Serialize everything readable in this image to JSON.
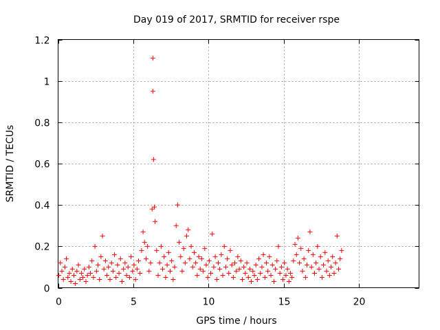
{
  "chart_data": {
    "type": "scatter",
    "title": "Day 019 of 2017, SRMTID for receiver rspe",
    "xlabel": "GPS time / hours",
    "ylabel": "SRMTID / TECUs",
    "xlim": [
      0,
      24
    ],
    "ylim": [
      0,
      1.2
    ],
    "xticks": [
      "0",
      "5",
      "10",
      "15",
      "20"
    ],
    "xtick_values": [
      0,
      5,
      10,
      15,
      20
    ],
    "yticks": [
      "0",
      "0.2",
      "0.4",
      "0.6",
      "0.8",
      "1",
      "1.2"
    ],
    "ytick_values": [
      0,
      0.2,
      0.4,
      0.6,
      0.8,
      1.0,
      1.2
    ],
    "grid": true,
    "marker": "+",
    "color": "#ff0000",
    "series": [
      {
        "points": [
          [
            0.05,
            0.06
          ],
          [
            0.15,
            0.12
          ],
          [
            0.25,
            0.08
          ],
          [
            0.35,
            0.04
          ],
          [
            0.45,
            0.1
          ],
          [
            0.55,
            0.14
          ],
          [
            0.65,
            0.05
          ],
          [
            0.75,
            0.07
          ],
          [
            0.85,
            0.03
          ],
          [
            0.95,
            0.09
          ],
          [
            1.05,
            0.06
          ],
          [
            1.15,
            0.02
          ],
          [
            1.25,
            0.08
          ],
          [
            1.35,
            0.11
          ],
          [
            1.45,
            0.04
          ],
          [
            1.55,
            0.07
          ],
          [
            1.65,
            0.05
          ],
          [
            1.75,
            0.09
          ],
          [
            1.85,
            0.03
          ],
          [
            1.95,
            0.06
          ],
          [
            2.05,
            0.1
          ],
          [
            2.15,
            0.07
          ],
          [
            2.25,
            0.13
          ],
          [
            2.35,
            0.05
          ],
          [
            2.45,
            0.2
          ],
          [
            2.55,
            0.08
          ],
          [
            2.65,
            0.11
          ],
          [
            2.75,
            0.04
          ],
          [
            2.85,
            0.15
          ],
          [
            2.95,
            0.25
          ],
          [
            3.05,
            0.09
          ],
          [
            3.15,
            0.13
          ],
          [
            3.25,
            0.06
          ],
          [
            3.35,
            0.1
          ],
          [
            3.45,
            0.04
          ],
          [
            3.55,
            0.12
          ],
          [
            3.65,
            0.08
          ],
          [
            3.75,
            0.16
          ],
          [
            3.85,
            0.05
          ],
          [
            3.95,
            0.11
          ],
          [
            4.05,
            0.07
          ],
          [
            4.15,
            0.14
          ],
          [
            4.25,
            0.03
          ],
          [
            4.35,
            0.09
          ],
          [
            4.45,
            0.12
          ],
          [
            4.55,
            0.06
          ],
          [
            4.65,
            0.1
          ],
          [
            4.75,
            0.05
          ],
          [
            4.85,
            0.15
          ],
          [
            4.95,
            0.08
          ],
          [
            5.05,
            0.11
          ],
          [
            5.15,
            0.04
          ],
          [
            5.25,
            0.09
          ],
          [
            5.35,
            0.13
          ],
          [
            5.45,
            0.07
          ],
          [
            5.55,
            0.18
          ],
          [
            5.65,
            0.27
          ],
          [
            5.75,
            0.22
          ],
          [
            5.85,
            0.14
          ],
          [
            5.95,
            0.2
          ],
          [
            6.05,
            0.08
          ],
          [
            6.15,
            0.12
          ],
          [
            6.25,
            0.38
          ],
          [
            6.3,
            1.11
          ],
          [
            6.3,
            0.95
          ],
          [
            6.35,
            0.62
          ],
          [
            6.4,
            0.39
          ],
          [
            6.45,
            0.32
          ],
          [
            6.55,
            0.18
          ],
          [
            6.65,
            0.06
          ],
          [
            6.75,
            0.12
          ],
          [
            6.85,
            0.2
          ],
          [
            6.95,
            0.09
          ],
          [
            7.05,
            0.15
          ],
          [
            7.15,
            0.05
          ],
          [
            7.25,
            0.11
          ],
          [
            7.35,
            0.17
          ],
          [
            7.45,
            0.08
          ],
          [
            7.55,
            0.13
          ],
          [
            7.65,
            0.04
          ],
          [
            7.75,
            0.1
          ],
          [
            7.85,
            0.3
          ],
          [
            7.95,
            0.4
          ],
          [
            8.05,
            0.22
          ],
          [
            8.15,
            0.15
          ],
          [
            8.25,
            0.08
          ],
          [
            8.35,
            0.19
          ],
          [
            8.45,
            0.12
          ],
          [
            8.55,
            0.25
          ],
          [
            8.65,
            0.28
          ],
          [
            8.75,
            0.14
          ],
          [
            8.85,
            0.2
          ],
          [
            8.95,
            0.1
          ],
          [
            9.05,
            0.17
          ],
          [
            9.15,
            0.12
          ],
          [
            9.25,
            0.06
          ],
          [
            9.35,
            0.15
          ],
          [
            9.45,
            0.09
          ],
          [
            9.55,
            0.14
          ],
          [
            9.65,
            0.08
          ],
          [
            9.75,
            0.19
          ],
          [
            9.85,
            0.11
          ],
          [
            9.95,
            0.05
          ],
          [
            10.05,
            0.13
          ],
          [
            10.15,
            0.07
          ],
          [
            10.25,
            0.26
          ],
          [
            10.35,
            0.1
          ],
          [
            10.45,
            0.15
          ],
          [
            10.55,
            0.04
          ],
          [
            10.65,
            0.12
          ],
          [
            10.75,
            0.09
          ],
          [
            10.85,
            0.16
          ],
          [
            10.95,
            0.06
          ],
          [
            11.05,
            0.2
          ],
          [
            11.15,
            0.1
          ],
          [
            11.25,
            0.14
          ],
          [
            11.35,
            0.07
          ],
          [
            11.45,
            0.18
          ],
          [
            11.55,
            0.11
          ],
          [
            11.65,
            0.05
          ],
          [
            11.75,
            0.12
          ],
          [
            11.85,
            0.08
          ],
          [
            11.95,
            0.15
          ],
          [
            12.05,
            0.09
          ],
          [
            12.15,
            0.13
          ],
          [
            12.25,
            0.04
          ],
          [
            12.35,
            0.1
          ],
          [
            12.45,
            0.07
          ],
          [
            12.55,
            0.12
          ],
          [
            12.65,
            0.05
          ],
          [
            12.75,
            0.09
          ],
          [
            12.85,
            0.03
          ],
          [
            12.95,
            0.08
          ],
          [
            13.05,
            0.06
          ],
          [
            13.15,
            0.11
          ],
          [
            13.25,
            0.04
          ],
          [
            13.35,
            0.14
          ],
          [
            13.45,
            0.07
          ],
          [
            13.55,
            0.1
          ],
          [
            13.65,
            0.16
          ],
          [
            13.75,
            0.05
          ],
          [
            13.85,
            0.12
          ],
          [
            13.95,
            0.08
          ],
          [
            14.05,
            0.15
          ],
          [
            14.15,
            0.06
          ],
          [
            14.25,
            0.11
          ],
          [
            14.35,
            0.03
          ],
          [
            14.45,
            0.09
          ],
          [
            14.55,
            0.13
          ],
          [
            14.65,
            0.2
          ],
          [
            14.75,
            0.07
          ],
          [
            14.85,
            0.1
          ],
          [
            14.95,
            0.04
          ],
          [
            15.05,
            0.12
          ],
          [
            15.15,
            0.06
          ],
          [
            15.25,
            0.09
          ],
          [
            15.35,
            0.03
          ],
          [
            15.45,
            0.07
          ],
          [
            15.55,
            0.05
          ],
          [
            15.65,
            0.13
          ],
          [
            15.75,
            0.21
          ],
          [
            15.85,
            0.16
          ],
          [
            15.95,
            0.24
          ],
          [
            16.05,
            0.12
          ],
          [
            16.15,
            0.19
          ],
          [
            16.25,
            0.08
          ],
          [
            16.35,
            0.14
          ],
          [
            16.45,
            0.05
          ],
          [
            16.55,
            0.11
          ],
          [
            16.65,
            0.18
          ],
          [
            16.75,
            0.27
          ],
          [
            16.85,
            0.1
          ],
          [
            16.95,
            0.16
          ],
          [
            17.05,
            0.07
          ],
          [
            17.15,
            0.12
          ],
          [
            17.25,
            0.2
          ],
          [
            17.35,
            0.09
          ],
          [
            17.45,
            0.15
          ],
          [
            17.55,
            0.05
          ],
          [
            17.65,
            0.11
          ],
          [
            17.75,
            0.17
          ],
          [
            17.85,
            0.08
          ],
          [
            17.95,
            0.13
          ],
          [
            18.05,
            0.06
          ],
          [
            18.15,
            0.1
          ],
          [
            18.25,
            0.15
          ],
          [
            18.35,
            0.07
          ],
          [
            18.45,
            0.12
          ],
          [
            18.55,
            0.25
          ],
          [
            18.65,
            0.09
          ],
          [
            18.75,
            0.14
          ],
          [
            18.85,
            0.18
          ]
        ]
      }
    ]
  }
}
